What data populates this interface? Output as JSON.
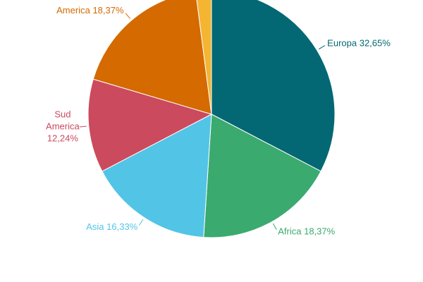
{
  "chart_data": {
    "type": "pie",
    "categories": [
      "Europa",
      "Africa",
      "Asia",
      "Sud America",
      "America",
      null
    ],
    "values": [
      32.65,
      18.37,
      16.33,
      12.24,
      18.37,
      2.04
    ],
    "value_labels": [
      "32,65%",
      "18,37%",
      "16,33%",
      "12,24%",
      "18,37%",
      null
    ],
    "colors": [
      "#036873",
      "#3aaa6e",
      "#52c4e6",
      "#cc4a5e",
      "#d46a00",
      "#f4b533"
    ]
  }
}
